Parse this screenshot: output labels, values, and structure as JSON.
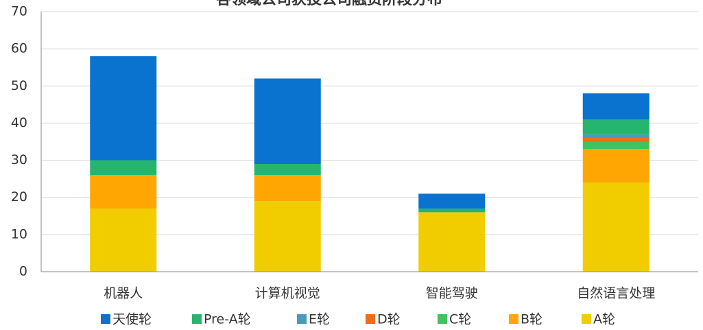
{
  "chart_data": {
    "type": "bar",
    "stacked": true,
    "title": "各领域公司获投公司融资阶段分布",
    "categories": [
      "机器人",
      "计算机视觉",
      "智能驾驶",
      "自然语言处理"
    ],
    "series": [
      {
        "name": "天使轮",
        "color": "#0a72cf",
        "values": [
          28,
          23,
          4,
          7
        ]
      },
      {
        "name": "Pre-A轮",
        "color": "#25b56f",
        "values": [
          4,
          3,
          1,
          4
        ]
      },
      {
        "name": "E轮",
        "color": "#4a9bbb",
        "values": [
          0,
          0,
          0,
          1
        ]
      },
      {
        "name": "D轮",
        "color": "#f36b12",
        "values": [
          0,
          0,
          0,
          1
        ]
      },
      {
        "name": "C轮",
        "color": "#3ec45e",
        "values": [
          0,
          0,
          0,
          2
        ]
      },
      {
        "name": "B轮",
        "color": "#ffa602",
        "values": [
          9,
          7,
          0,
          9
        ]
      },
      {
        "name": "A轮",
        "color": "#f1cd00",
        "values": [
          17,
          19,
          16,
          24
        ]
      }
    ],
    "ylim": [
      0,
      70
    ],
    "yticks": [
      0,
      10,
      20,
      30,
      40,
      50,
      60,
      70
    ],
    "grid": true,
    "legend": "bottom"
  }
}
